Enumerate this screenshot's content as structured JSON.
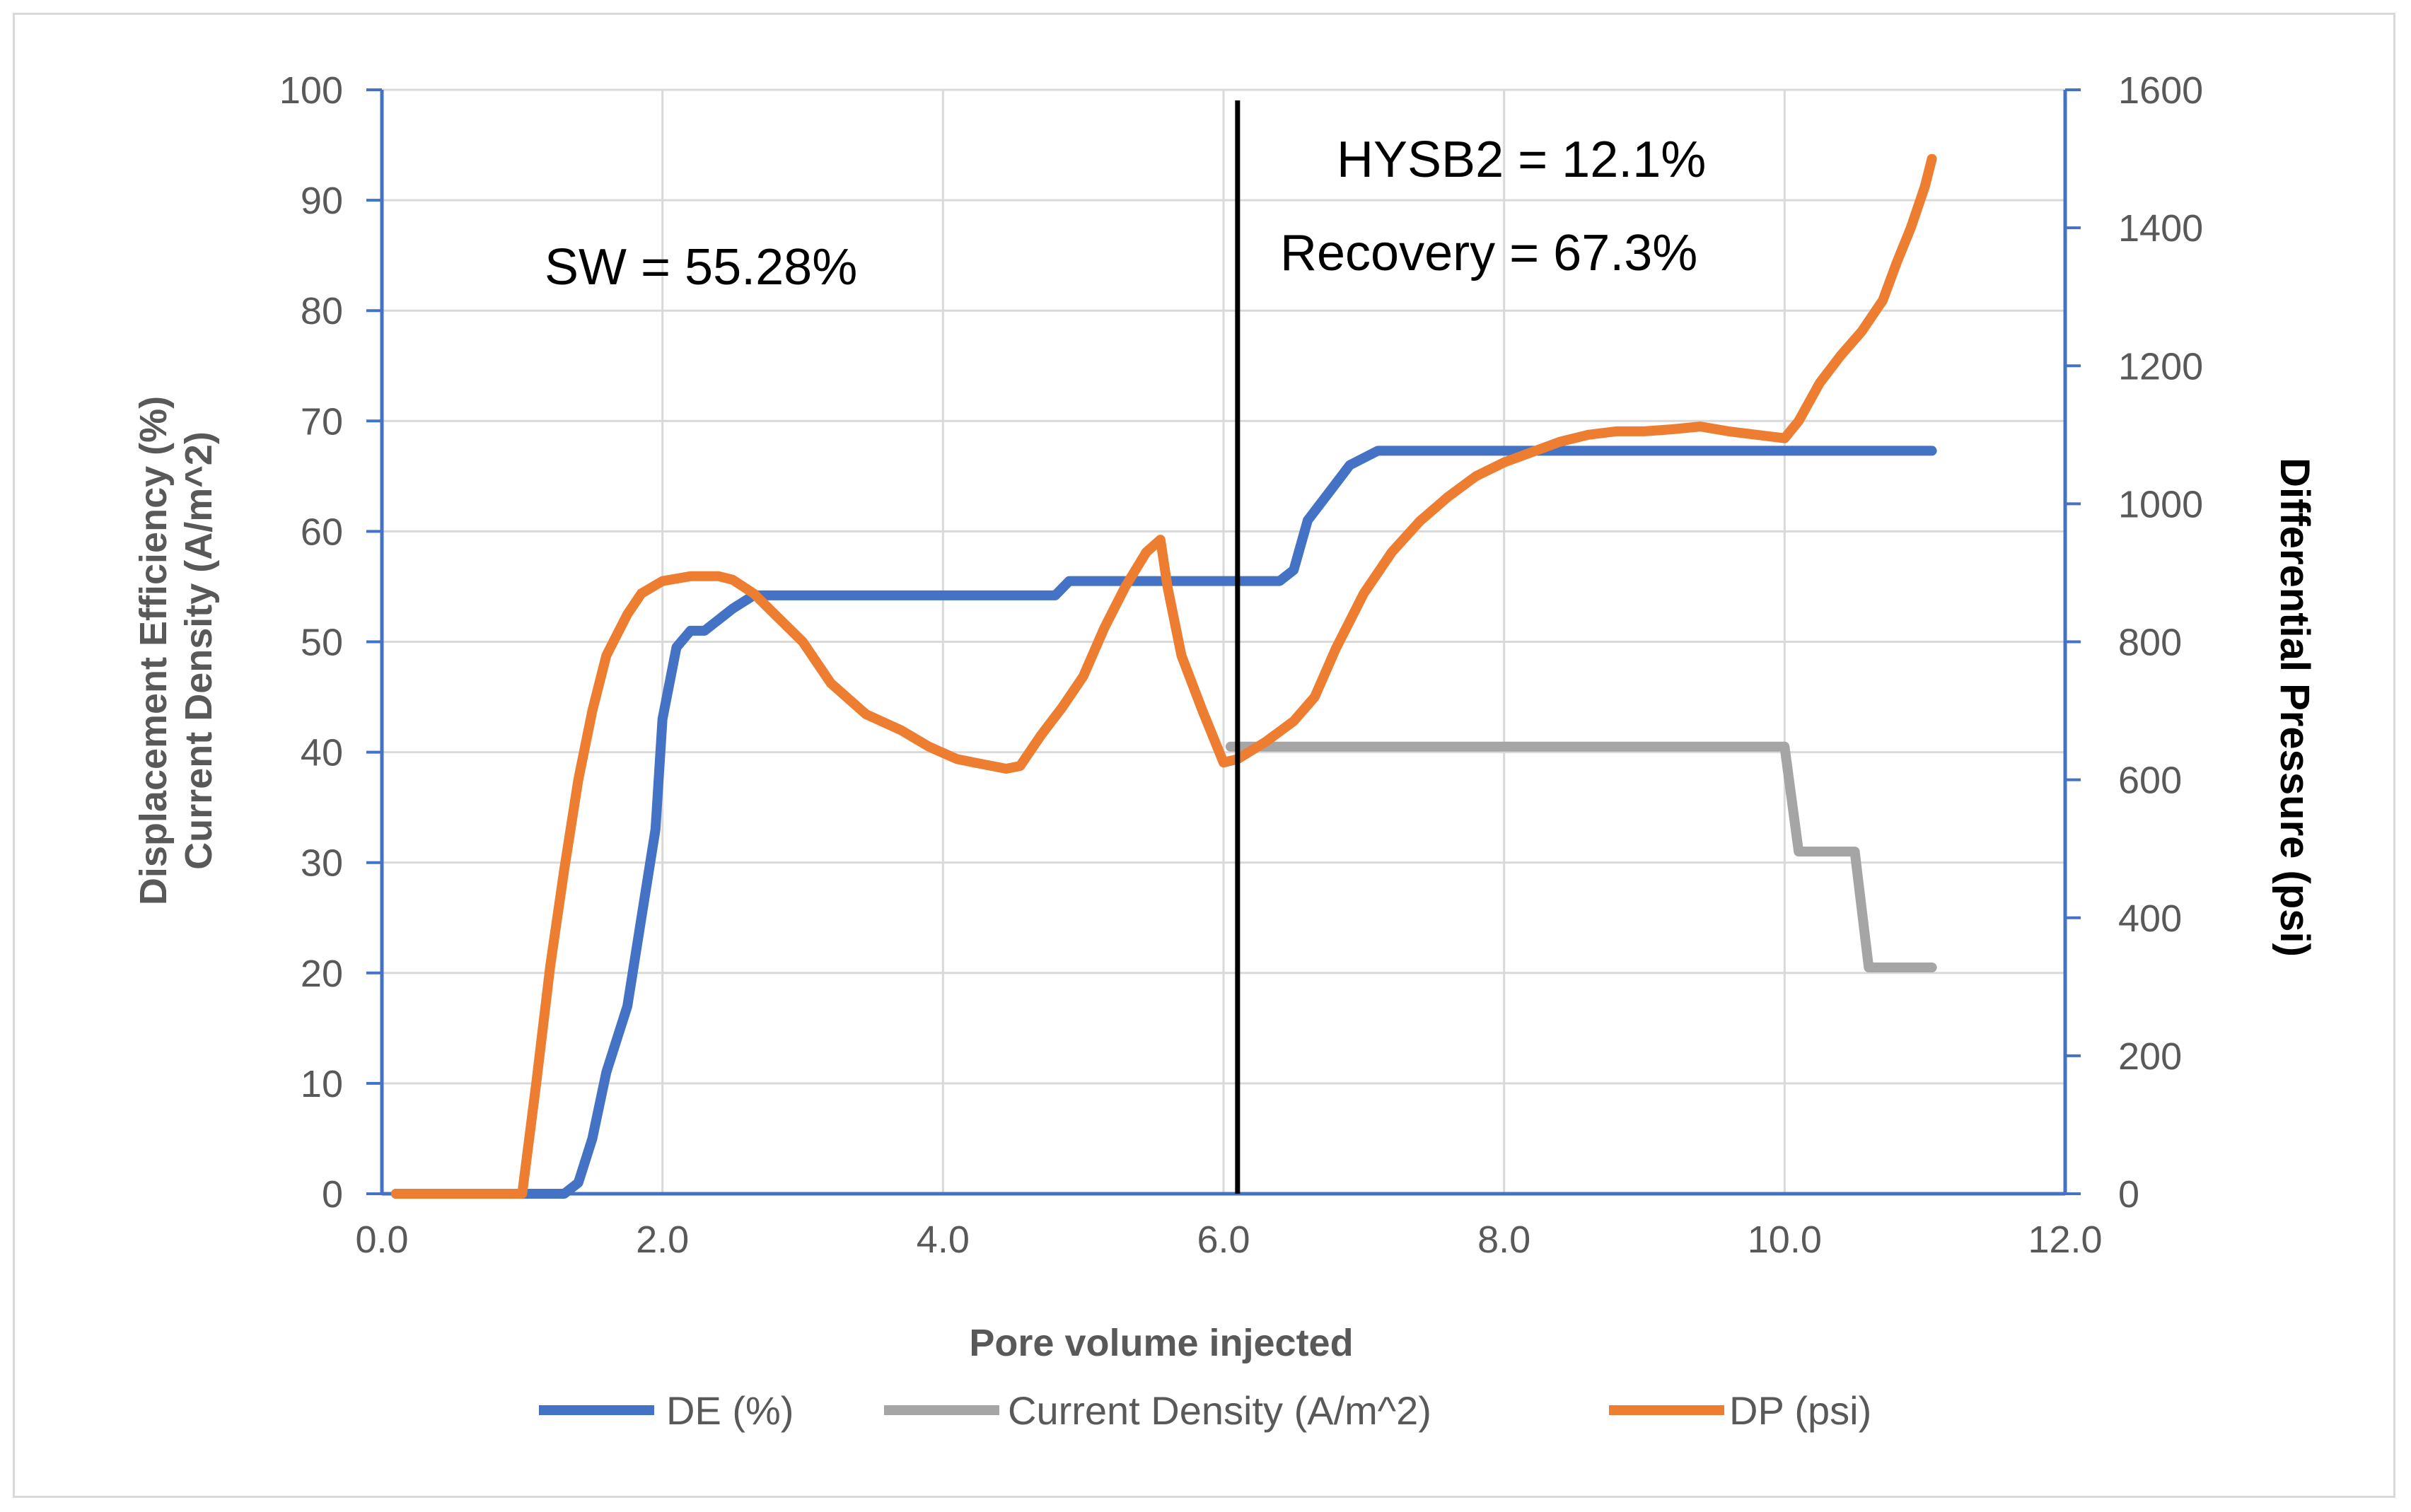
{
  "chart_data": {
    "type": "line",
    "xlabel": "Pore volume injected",
    "ylabel_left": [
      "Displacement Efficiency (%)",
      "Current Density (A/m^2)"
    ],
    "ylabel_right": "Differential Pressure (psi)",
    "xlim": [
      0,
      12
    ],
    "ylim_left": [
      0,
      100
    ],
    "ylim_right": [
      0,
      1600
    ],
    "x_ticks": [
      "0.0",
      "2.0",
      "4.0",
      "6.0",
      "8.0",
      "10.0",
      "12.0"
    ],
    "y_left_ticks": [
      "0",
      "10",
      "20",
      "30",
      "40",
      "50",
      "60",
      "70",
      "80",
      "90",
      "100"
    ],
    "y_right_ticks": [
      "0",
      "200",
      "400",
      "600",
      "800",
      "1000",
      "1200",
      "1400",
      "1600"
    ],
    "grid": true,
    "legend_position": "bottom",
    "vertical_marker_x": 6.1,
    "annotations": {
      "sw": "SW = 55.28%",
      "hysb2": "HYSB2 = 12.1%",
      "recovery": "Recovery = 67.3%"
    },
    "series": [
      {
        "name": "DE (%)",
        "axis": "left",
        "color": "#4472c4",
        "points": [
          [
            0.1,
            0
          ],
          [
            1.0,
            0
          ],
          [
            1.3,
            0
          ],
          [
            1.4,
            1
          ],
          [
            1.5,
            5
          ],
          [
            1.6,
            11
          ],
          [
            1.75,
            17
          ],
          [
            1.85,
            25
          ],
          [
            1.95,
            33
          ],
          [
            2.0,
            43
          ],
          [
            2.1,
            49.5
          ],
          [
            2.2,
            51
          ],
          [
            2.3,
            51
          ],
          [
            2.5,
            53
          ],
          [
            2.65,
            54.2
          ],
          [
            2.8,
            54.2
          ],
          [
            4.0,
            54.2
          ],
          [
            4.8,
            54.2
          ],
          [
            4.9,
            55.5
          ],
          [
            5.2,
            55.5
          ],
          [
            6.0,
            55.5
          ],
          [
            6.4,
            55.5
          ],
          [
            6.5,
            56.5
          ],
          [
            6.6,
            61
          ],
          [
            6.75,
            63.5
          ],
          [
            6.9,
            66
          ],
          [
            7.1,
            67.3
          ],
          [
            8.0,
            67.3
          ],
          [
            10.0,
            67.3
          ],
          [
            11.05,
            67.3
          ]
        ]
      },
      {
        "name": "Current Density (A/m^2)",
        "axis": "left",
        "color": "#a5a5a5",
        "points": [
          [
            6.05,
            40.5
          ],
          [
            10.0,
            40.5
          ],
          [
            10.1,
            31
          ],
          [
            10.5,
            31
          ],
          [
            10.6,
            20.5
          ],
          [
            11.05,
            20.5
          ]
        ]
      },
      {
        "name": "DP (psi)",
        "axis": "right",
        "color": "#ed7d31",
        "points": [
          [
            0.1,
            0
          ],
          [
            1.0,
            0
          ],
          [
            1.1,
            160
          ],
          [
            1.2,
            330
          ],
          [
            1.3,
            470
          ],
          [
            1.4,
            600
          ],
          [
            1.5,
            700
          ],
          [
            1.6,
            780
          ],
          [
            1.75,
            840
          ],
          [
            1.85,
            870
          ],
          [
            2.0,
            888
          ],
          [
            2.2,
            895
          ],
          [
            2.4,
            895
          ],
          [
            2.5,
            890
          ],
          [
            2.65,
            870
          ],
          [
            2.8,
            840
          ],
          [
            3.0,
            800
          ],
          [
            3.2,
            740
          ],
          [
            3.45,
            695
          ],
          [
            3.7,
            672
          ],
          [
            3.9,
            648
          ],
          [
            4.1,
            630
          ],
          [
            4.3,
            622
          ],
          [
            4.45,
            616
          ],
          [
            4.55,
            620
          ],
          [
            4.7,
            665
          ],
          [
            4.85,
            705
          ],
          [
            5.0,
            750
          ],
          [
            5.15,
            820
          ],
          [
            5.3,
            880
          ],
          [
            5.45,
            930
          ],
          [
            5.55,
            948
          ],
          [
            5.6,
            880
          ],
          [
            5.7,
            780
          ],
          [
            5.85,
            700
          ],
          [
            6.0,
            625
          ],
          [
            6.1,
            630
          ],
          [
            6.3,
            655
          ],
          [
            6.5,
            685
          ],
          [
            6.65,
            720
          ],
          [
            6.8,
            790
          ],
          [
            7.0,
            870
          ],
          [
            7.2,
            930
          ],
          [
            7.4,
            975
          ],
          [
            7.6,
            1010
          ],
          [
            7.8,
            1040
          ],
          [
            8.0,
            1060
          ],
          [
            8.2,
            1075
          ],
          [
            8.4,
            1090
          ],
          [
            8.6,
            1100
          ],
          [
            8.8,
            1105
          ],
          [
            9.0,
            1105
          ],
          [
            9.2,
            1108
          ],
          [
            9.4,
            1112
          ],
          [
            9.6,
            1105
          ],
          [
            9.8,
            1100
          ],
          [
            10.0,
            1095
          ],
          [
            10.1,
            1120
          ],
          [
            10.25,
            1175
          ],
          [
            10.4,
            1215
          ],
          [
            10.55,
            1250
          ],
          [
            10.7,
            1295
          ],
          [
            10.8,
            1350
          ],
          [
            10.9,
            1400
          ],
          [
            11.0,
            1460
          ],
          [
            11.05,
            1500
          ]
        ]
      }
    ]
  }
}
